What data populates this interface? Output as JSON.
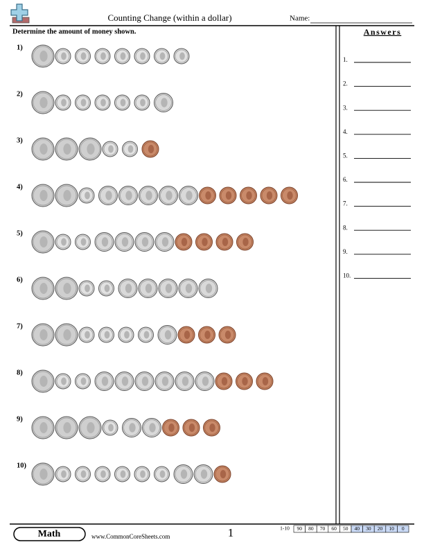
{
  "header": {
    "title": "Counting Change (within a dollar)",
    "name_label": "Name:"
  },
  "instructions": "Determine the amount of money shown.",
  "problems": [
    "1)",
    "2)",
    "3)",
    "4)",
    "5)",
    "6)",
    "7)",
    "8)",
    "9)",
    "10)"
  ],
  "answers": {
    "title": "Answers",
    "labels": [
      "1.",
      "2.",
      "3.",
      "4.",
      "5.",
      "6.",
      "7.",
      "8.",
      "9.",
      "10."
    ]
  },
  "footer": {
    "subject": "Math",
    "website": "www.CommonCoreSheets.com",
    "page": "1",
    "score_label": "1-10",
    "scores": [
      "90",
      "80",
      "70",
      "60",
      "50",
      "40",
      "30",
      "20",
      "10",
      "0"
    ]
  }
}
